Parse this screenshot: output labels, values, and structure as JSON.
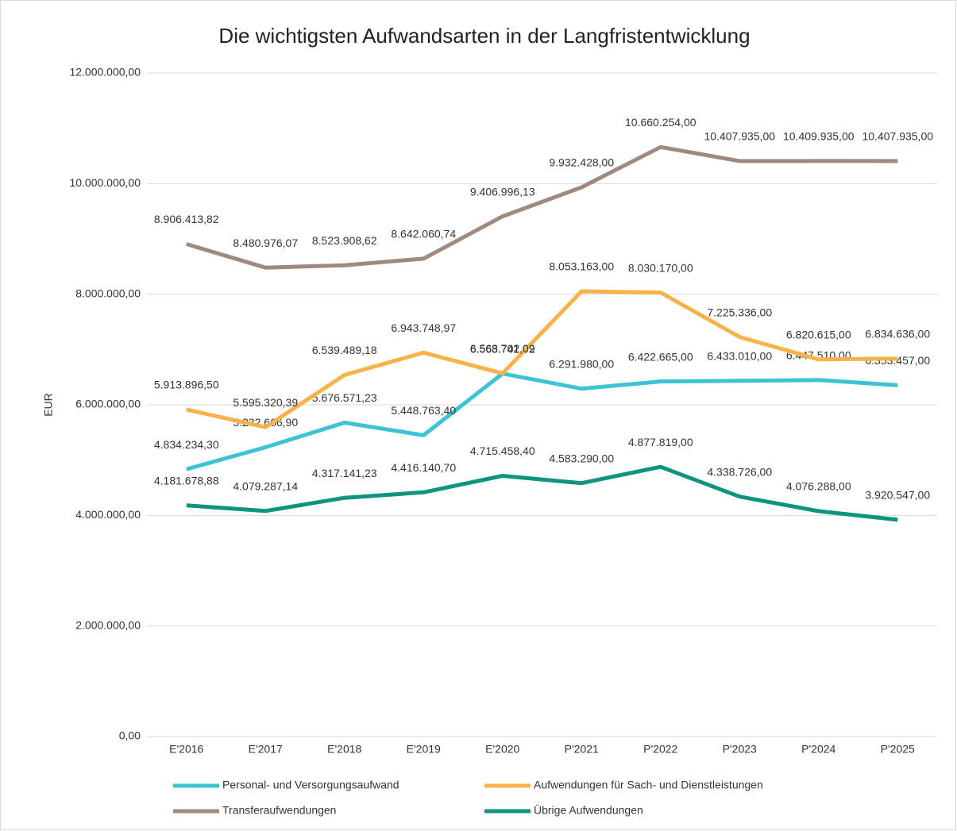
{
  "chart_data": {
    "type": "line",
    "title": "Die wichtigsten Aufwandsarten in der Langfristentwicklung",
    "y_label": "EUR",
    "categories": [
      "E'2016",
      "E'2017",
      "E'2018",
      "E'2019",
      "E'2020",
      "P'2021",
      "P'2022",
      "P'2023",
      "P'2024",
      "P'2025"
    ],
    "ylim": [
      0,
      12000000
    ],
    "yticks": [
      {
        "value": 0,
        "label": "0,00"
      },
      {
        "value": 2000000,
        "label": "2.000.000,00"
      },
      {
        "value": 4000000,
        "label": "4.000.000,00"
      },
      {
        "value": 6000000,
        "label": "6.000.000,00"
      },
      {
        "value": 8000000,
        "label": "8.000.000,00"
      },
      {
        "value": 10000000,
        "label": "10.000.000,00"
      },
      {
        "value": 12000000,
        "label": "12.000.000,00"
      }
    ],
    "grid": true,
    "legend": "bottom",
    "series": [
      {
        "name": "Personal- und Versorgungsaufwand",
        "color": "#3cc3d4",
        "values": [
          4834234.3,
          5232666.9,
          5676571.23,
          5448763.4,
          6563741.92,
          6291980.0,
          6422665.0,
          6433010.0,
          6447510.0,
          6353457.0
        ],
        "value_labels": [
          "4.834.234,30",
          "5.232.666,90",
          "5.676.571,23",
          "5.448.763,40",
          "6.563.741,92",
          "6.291.980,00",
          "6.422.665,00",
          "6.433.010,00",
          "6.447.510,00",
          "6.353.457,00"
        ]
      },
      {
        "name": "Aufwendungen für Sach- und Dienstleistungen",
        "color": "#f8b24a",
        "values": [
          5913896.5,
          5595320.39,
          6539489.18,
          6943748.97,
          6568702.09,
          8053163.0,
          8030170.0,
          7225336.0,
          6820615.0,
          6834636.0
        ],
        "value_labels": [
          "5.913.896,50",
          "5.595.320,39",
          "6.539.489,18",
          "6.943.748,97",
          "6.568.702,09",
          "8.053.163,00",
          "8.030.170,00",
          "7.225.336,00",
          "6.820.615,00",
          "6.834.636,00"
        ]
      },
      {
        "name": "Transferaufwendungen",
        "color": "#a08a80",
        "values": [
          8906413.82,
          8480976.07,
          8523908.62,
          8642060.74,
          9406996.13,
          9932428.0,
          10660254.0,
          10407935.0,
          10409935.0,
          10407935.0
        ],
        "value_labels": [
          "8.906.413,82",
          "8.480.976,07",
          "8.523.908,62",
          "8.642.060,74",
          "9.406.996,13",
          "9.932.428,00",
          "10.660.254,00",
          "10.407.935,00",
          "10.409.935,00",
          "10.407.935,00"
        ]
      },
      {
        "name": "Übrige Aufwendungen",
        "color": "#0f9480",
        "values": [
          4181678.88,
          4079287.14,
          4317141.23,
          4416140.7,
          4715458.4,
          4583290.0,
          4877819.0,
          4338726.0,
          4076288.0,
          3920547.0
        ],
        "value_labels": [
          "4.181.678,88",
          "4.079.287,14",
          "4.317.141,23",
          "4.416.140,70",
          "4.715.458,40",
          "4.583.290,00",
          "4.877.819,00",
          "4.338.726,00",
          "4.076.288,00",
          "3.920.547,00"
        ]
      }
    ]
  }
}
